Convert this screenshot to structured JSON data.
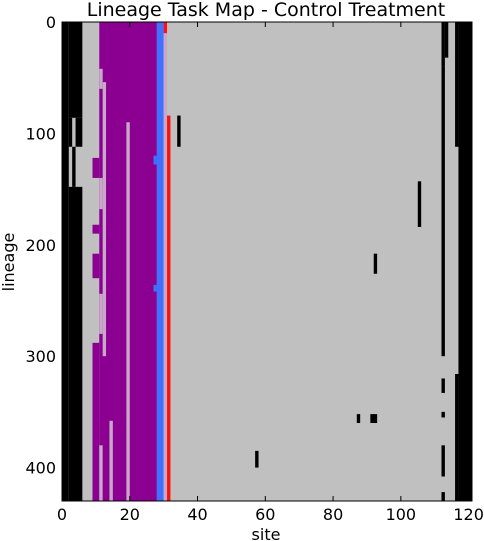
{
  "chart_data": {
    "type": "heatmap",
    "title": "Lineage Task Map - Control Treatment",
    "xlabel": "site",
    "ylabel": "lineage",
    "xlim": [
      0,
      121
    ],
    "ylim": [
      0,
      430
    ],
    "y_inverted": true,
    "grid": false,
    "x_ticks": [
      0,
      20,
      40,
      60,
      80,
      100,
      120
    ],
    "y_ticks": [
      0,
      100,
      200,
      300,
      400
    ],
    "background_color": "#c0c0c0",
    "colors": {
      "background": "#c0c0c0",
      "black": "#000000",
      "purple": "#8b0090",
      "pink": "#c8a8c8",
      "blue": "#4070ff",
      "red": "#ff1010"
    },
    "segments": [
      {
        "color": "black",
        "x": [
          0,
          2
        ],
        "y": [
          0,
          430
        ]
      },
      {
        "color": "black",
        "x": [
          2,
          6
        ],
        "y": [
          0,
          86
        ]
      },
      {
        "color": "black",
        "x": [
          2,
          3
        ],
        "y": [
          86,
          112
        ]
      },
      {
        "color": "black",
        "x": [
          4,
          6
        ],
        "y": [
          86,
          112
        ]
      },
      {
        "color": "black",
        "x": [
          3,
          4
        ],
        "y": [
          112,
          148
        ]
      },
      {
        "color": "black",
        "x": [
          2,
          6
        ],
        "y": [
          148,
          430
        ]
      },
      {
        "color": "purple",
        "x": [
          11,
          28
        ],
        "y": [
          0,
          430
        ]
      },
      {
        "color": "purple",
        "x": [
          9,
          11
        ],
        "y": [
          122,
          140
        ]
      },
      {
        "color": "purple",
        "x": [
          9,
          11
        ],
        "y": [
          182,
          190
        ]
      },
      {
        "color": "purple",
        "x": [
          9,
          11
        ],
        "y": [
          208,
          230
        ]
      },
      {
        "color": "purple",
        "x": [
          9,
          11
        ],
        "y": [
          288,
          430
        ]
      },
      {
        "color": "pink",
        "x": [
          11,
          12
        ],
        "y": [
          42,
          60
        ]
      },
      {
        "color": "pink",
        "x": [
          11,
          12
        ],
        "y": [
          140,
          168
        ]
      },
      {
        "color": "pink",
        "x": [
          11,
          12
        ],
        "y": [
          244,
          280
        ]
      },
      {
        "color": "pink",
        "x": [
          12,
          13
        ],
        "y": [
          54,
          300
        ]
      },
      {
        "color": "pink",
        "x": [
          19,
          20
        ],
        "y": [
          90,
          430
        ]
      },
      {
        "color": "pink",
        "x": [
          14,
          15
        ],
        "y": [
          358,
          430
        ]
      },
      {
        "color": "pink",
        "x": [
          11,
          12
        ],
        "y": [
          380,
          430
        ]
      },
      {
        "color": "blue",
        "x": [
          27,
          28
        ],
        "y": [
          120,
          128
        ]
      },
      {
        "color": "blue",
        "x": [
          27,
          28
        ],
        "y": [
          236,
          242
        ]
      },
      {
        "color": "blue",
        "x": [
          28,
          30
        ],
        "y": [
          0,
          430
        ]
      },
      {
        "color": "pink",
        "x": [
          30,
          31
        ],
        "y": [
          10,
          430
        ]
      },
      {
        "color": "red",
        "x": [
          30,
          31
        ],
        "y": [
          0,
          10
        ]
      },
      {
        "color": "red",
        "x": [
          31,
          32
        ],
        "y": [
          84,
          430
        ]
      },
      {
        "color": "black",
        "x": [
          34,
          35
        ],
        "y": [
          84,
          112
        ]
      },
      {
        "color": "black",
        "x": [
          57,
          58
        ],
        "y": [
          385,
          400
        ]
      },
      {
        "color": "black",
        "x": [
          87,
          88
        ],
        "y": [
          352,
          360
        ]
      },
      {
        "color": "black",
        "x": [
          91,
          93
        ],
        "y": [
          352,
          360
        ]
      },
      {
        "color": "black",
        "x": [
          92,
          93
        ],
        "y": [
          208,
          226
        ]
      },
      {
        "color": "black",
        "x": [
          105,
          106
        ],
        "y": [
          143,
          184
        ]
      },
      {
        "color": "black",
        "x": [
          112,
          113
        ],
        "y": [
          0,
          40
        ]
      },
      {
        "color": "black",
        "x": [
          113,
          114
        ],
        "y": [
          0,
          32
        ]
      },
      {
        "color": "black",
        "x": [
          112,
          113
        ],
        "y": [
          40,
          300
        ]
      },
      {
        "color": "black",
        "x": [
          112,
          113
        ],
        "y": [
          320,
          333
        ]
      },
      {
        "color": "black",
        "x": [
          112,
          113
        ],
        "y": [
          350,
          355
        ]
      },
      {
        "color": "black",
        "x": [
          112,
          113
        ],
        "y": [
          380,
          408
        ]
      },
      {
        "color": "black",
        "x": [
          112,
          113
        ],
        "y": [
          422,
          430
        ]
      },
      {
        "color": "black",
        "x": [
          117,
          121
        ],
        "y": [
          0,
          430
        ]
      },
      {
        "color": "black",
        "x": [
          116,
          117
        ],
        "y": [
          0,
          112
        ]
      },
      {
        "color": "black",
        "x": [
          116,
          117
        ],
        "y": [
          316,
          430
        ]
      }
    ]
  }
}
